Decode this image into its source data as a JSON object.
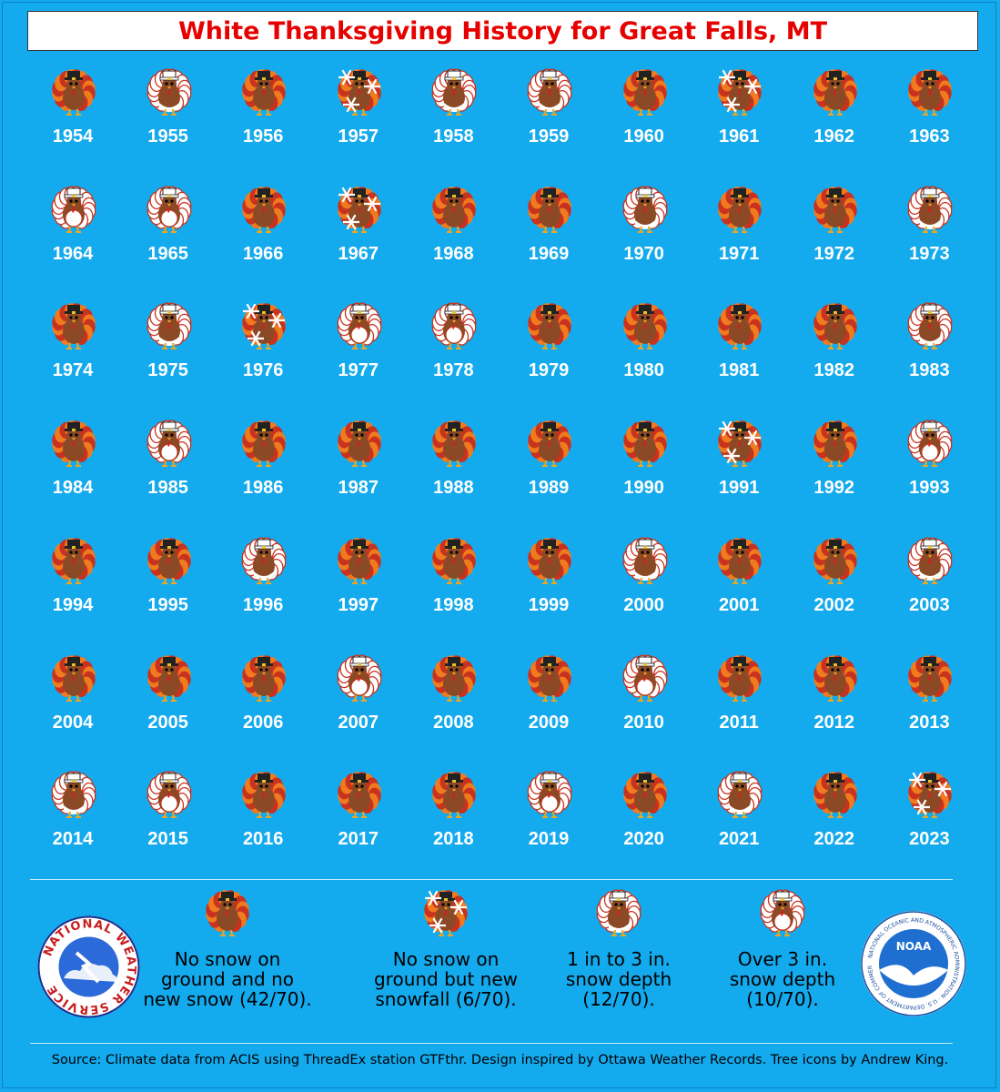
{
  "title": "White Thanksgiving History for Great Falls, MT",
  "chart_data": {
    "type": "table",
    "categories": {
      "none": "No snow on ground and no new snow (42/70).",
      "new": "No snow on ground but new snowfall (6/70).",
      "light": "1 in to 3 in. snow depth (12/70).",
      "heavy": "Over 3 in. snow depth (10/70)."
    },
    "years": [
      {
        "year": "1954",
        "cat": "none"
      },
      {
        "year": "1955",
        "cat": "light"
      },
      {
        "year": "1956",
        "cat": "none"
      },
      {
        "year": "1957",
        "cat": "new"
      },
      {
        "year": "1958",
        "cat": "light"
      },
      {
        "year": "1959",
        "cat": "light"
      },
      {
        "year": "1960",
        "cat": "none"
      },
      {
        "year": "1961",
        "cat": "new"
      },
      {
        "year": "1962",
        "cat": "none"
      },
      {
        "year": "1963",
        "cat": "none"
      },
      {
        "year": "1964",
        "cat": "heavy"
      },
      {
        "year": "1965",
        "cat": "heavy"
      },
      {
        "year": "1966",
        "cat": "none"
      },
      {
        "year": "1967",
        "cat": "new"
      },
      {
        "year": "1968",
        "cat": "none"
      },
      {
        "year": "1969",
        "cat": "none"
      },
      {
        "year": "1970",
        "cat": "light"
      },
      {
        "year": "1971",
        "cat": "none"
      },
      {
        "year": "1972",
        "cat": "none"
      },
      {
        "year": "1973",
        "cat": "light"
      },
      {
        "year": "1974",
        "cat": "none"
      },
      {
        "year": "1975",
        "cat": "light"
      },
      {
        "year": "1976",
        "cat": "new"
      },
      {
        "year": "1977",
        "cat": "heavy"
      },
      {
        "year": "1978",
        "cat": "heavy"
      },
      {
        "year": "1979",
        "cat": "none"
      },
      {
        "year": "1980",
        "cat": "none"
      },
      {
        "year": "1981",
        "cat": "none"
      },
      {
        "year": "1982",
        "cat": "none"
      },
      {
        "year": "1983",
        "cat": "light"
      },
      {
        "year": "1984",
        "cat": "none"
      },
      {
        "year": "1985",
        "cat": "heavy"
      },
      {
        "year": "1986",
        "cat": "none"
      },
      {
        "year": "1987",
        "cat": "none"
      },
      {
        "year": "1988",
        "cat": "none"
      },
      {
        "year": "1989",
        "cat": "none"
      },
      {
        "year": "1990",
        "cat": "none"
      },
      {
        "year": "1991",
        "cat": "new"
      },
      {
        "year": "1992",
        "cat": "none"
      },
      {
        "year": "1993",
        "cat": "heavy"
      },
      {
        "year": "1994",
        "cat": "none"
      },
      {
        "year": "1995",
        "cat": "none"
      },
      {
        "year": "1996",
        "cat": "light"
      },
      {
        "year": "1997",
        "cat": "none"
      },
      {
        "year": "1998",
        "cat": "none"
      },
      {
        "year": "1999",
        "cat": "none"
      },
      {
        "year": "2000",
        "cat": "light"
      },
      {
        "year": "2001",
        "cat": "none"
      },
      {
        "year": "2002",
        "cat": "none"
      },
      {
        "year": "2003",
        "cat": "light"
      },
      {
        "year": "2004",
        "cat": "none"
      },
      {
        "year": "2005",
        "cat": "none"
      },
      {
        "year": "2006",
        "cat": "none"
      },
      {
        "year": "2007",
        "cat": "heavy"
      },
      {
        "year": "2008",
        "cat": "none"
      },
      {
        "year": "2009",
        "cat": "none"
      },
      {
        "year": "2010",
        "cat": "heavy"
      },
      {
        "year": "2011",
        "cat": "none"
      },
      {
        "year": "2012",
        "cat": "none"
      },
      {
        "year": "2013",
        "cat": "none"
      },
      {
        "year": "2014",
        "cat": "light"
      },
      {
        "year": "2015",
        "cat": "heavy"
      },
      {
        "year": "2016",
        "cat": "none"
      },
      {
        "year": "2017",
        "cat": "none"
      },
      {
        "year": "2018",
        "cat": "none"
      },
      {
        "year": "2019",
        "cat": "heavy"
      },
      {
        "year": "2020",
        "cat": "none"
      },
      {
        "year": "2021",
        "cat": "light"
      },
      {
        "year": "2022",
        "cat": "none"
      },
      {
        "year": "2023",
        "cat": "new"
      }
    ]
  },
  "legend": [
    {
      "key": "none",
      "lines": [
        "No snow on",
        "ground and no",
        "new snow (42/70)."
      ]
    },
    {
      "key": "new",
      "lines": [
        "No snow on",
        "ground but new",
        "snowfall (6/70)."
      ]
    },
    {
      "key": "light",
      "lines": [
        "1 in to 3 in.",
        "snow depth",
        "(12/70)."
      ]
    },
    {
      "key": "heavy",
      "lines": [
        "Over 3 in.",
        "snow depth",
        "(10/70)."
      ]
    }
  ],
  "nws_logo": {
    "text": "NATIONAL WEATHER SERVICE"
  },
  "noaa_logo": {
    "text": "NOAA",
    "ring_text": "NATIONAL OCEANIC AND ATMOSPHERIC ADMINISTRATION · U.S. DEPARTMENT OF COMMERCE"
  },
  "source": "Source: Climate data from ACIS using ThreadEx station GTFthr. Design inspired by Ottawa Weather Records. Tree icons by Andrew King.",
  "colors": {
    "background": "#14aaee",
    "title": "#e60000",
    "brown": "#8b4a25",
    "feather_red": "#c8321e",
    "feather_orange": "#f07a1e",
    "snow": "#ffffff"
  }
}
